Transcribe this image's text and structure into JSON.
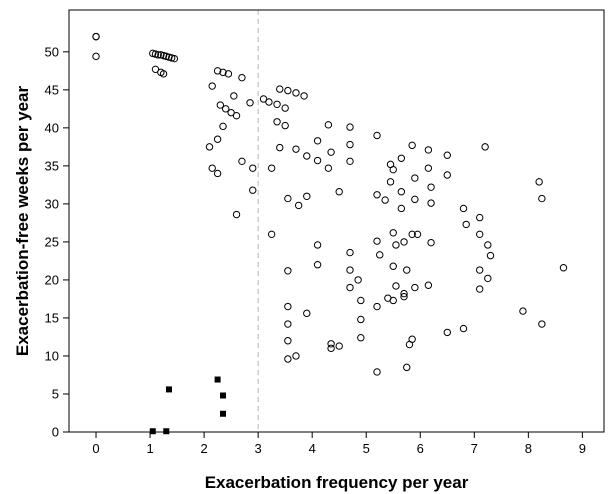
{
  "chart_data": {
    "type": "scatter",
    "title": "",
    "xlabel": "Exacerbation frequency per year",
    "ylabel": "Exacerbation-free weeks per year",
    "xlim": [
      -0.5,
      9.4
    ],
    "ylim": [
      0,
      55.5
    ],
    "xticks": [
      0,
      1,
      2,
      3,
      4,
      5,
      6,
      7,
      8,
      9
    ],
    "yticks": [
      0,
      5,
      10,
      15,
      20,
      25,
      30,
      35,
      40,
      45,
      50
    ],
    "reference_line": {
      "x": 3,
      "style": "dashed"
    },
    "grid": false,
    "legend": "none",
    "series": [
      {
        "marker": "open-circle",
        "points": [
          [
            0,
            52
          ],
          [
            0,
            52
          ],
          [
            0,
            49.4
          ],
          [
            1.05,
            49.8
          ],
          [
            1.1,
            49.7
          ],
          [
            1.15,
            49.6
          ],
          [
            1.2,
            49.6
          ],
          [
            1.25,
            49.5
          ],
          [
            1.3,
            49.4
          ],
          [
            1.35,
            49.3
          ],
          [
            1.4,
            49.2
          ],
          [
            1.45,
            49.1
          ],
          [
            1.1,
            47.7
          ],
          [
            1.2,
            47.3
          ],
          [
            1.25,
            47.1
          ],
          [
            2.25,
            47.5
          ],
          [
            2.35,
            47.3
          ],
          [
            2.45,
            47.1
          ],
          [
            2.7,
            46.6
          ],
          [
            2.15,
            45.5
          ],
          [
            2.3,
            43
          ],
          [
            2.4,
            42.5
          ],
          [
            2.5,
            42
          ],
          [
            2.6,
            41.6
          ],
          [
            2.85,
            43.3
          ],
          [
            2.55,
            44.2
          ],
          [
            2.35,
            40.2
          ],
          [
            2.25,
            38.5
          ],
          [
            2.1,
            37.5
          ],
          [
            2.15,
            34.7
          ],
          [
            2.25,
            34
          ],
          [
            2.7,
            35.6
          ],
          [
            2.9,
            34.7
          ],
          [
            2.9,
            31.8
          ],
          [
            2.6,
            28.6
          ],
          [
            3.1,
            43.8
          ],
          [
            3.2,
            43.4
          ],
          [
            3.35,
            43.1
          ],
          [
            3.5,
            42.6
          ],
          [
            3.4,
            45.1
          ],
          [
            3.55,
            44.9
          ],
          [
            3.7,
            44.6
          ],
          [
            3.85,
            44.2
          ],
          [
            3.35,
            40.8
          ],
          [
            3.5,
            40.3
          ],
          [
            3.4,
            37.4
          ],
          [
            3.7,
            37.2
          ],
          [
            3.9,
            36.3
          ],
          [
            4.1,
            35.7
          ],
          [
            4.3,
            34.7
          ],
          [
            4.1,
            38.3
          ],
          [
            4.3,
            40.4
          ],
          [
            4.35,
            36.8
          ],
          [
            4.7,
            40.1
          ],
          [
            4.7,
            37.8
          ],
          [
            4.7,
            35.6
          ],
          [
            3.25,
            34.7
          ],
          [
            3.55,
            30.7
          ],
          [
            3.75,
            29.8
          ],
          [
            3.9,
            31
          ],
          [
            4.5,
            31.6
          ],
          [
            3.25,
            26
          ],
          [
            4.1,
            24.6
          ],
          [
            4.1,
            22
          ],
          [
            4.7,
            23.6
          ],
          [
            4.7,
            21.3
          ],
          [
            4.85,
            20
          ],
          [
            4.7,
            19
          ],
          [
            3.55,
            21.2
          ],
          [
            3.55,
            16.5
          ],
          [
            3.55,
            14.2
          ],
          [
            3.55,
            12
          ],
          [
            3.55,
            9.6
          ],
          [
            3.7,
            10
          ],
          [
            3.9,
            15.6
          ],
          [
            4.35,
            11.6
          ],
          [
            4.35,
            11
          ],
          [
            4.5,
            11.3
          ],
          [
            4.9,
            14.8
          ],
          [
            4.9,
            12.4
          ],
          [
            5.2,
            7.9
          ],
          [
            4.9,
            17.3
          ],
          [
            5.2,
            31.2
          ],
          [
            5.2,
            39
          ],
          [
            5.45,
            35.2
          ],
          [
            5.5,
            34.5
          ],
          [
            5.65,
            36
          ],
          [
            5.85,
            37.7
          ],
          [
            6.15,
            37.1
          ],
          [
            6.5,
            36.4
          ],
          [
            6.5,
            33.8
          ],
          [
            7.2,
            37.5
          ],
          [
            5.35,
            30.5
          ],
          [
            5.45,
            32.9
          ],
          [
            5.65,
            31.6
          ],
          [
            5.65,
            29.4
          ],
          [
            5.9,
            30.6
          ],
          [
            5.9,
            33.4
          ],
          [
            6.15,
            34.7
          ],
          [
            6.2,
            32.2
          ],
          [
            6.2,
            30.1
          ],
          [
            5.2,
            25.1
          ],
          [
            5.25,
            23.3
          ],
          [
            5.5,
            26.2
          ],
          [
            5.55,
            24.6
          ],
          [
            5.7,
            25
          ],
          [
            5.85,
            26
          ],
          [
            5.95,
            26
          ],
          [
            6.2,
            24.9
          ],
          [
            5.5,
            21.8
          ],
          [
            5.55,
            19.2
          ],
          [
            5.4,
            17.6
          ],
          [
            5.2,
            16.5
          ],
          [
            5.5,
            17.3
          ],
          [
            5.75,
            21.3
          ],
          [
            5.7,
            18.2
          ],
          [
            5.7,
            17.8
          ],
          [
            5.9,
            19
          ],
          [
            6.15,
            19.3
          ],
          [
            5.85,
            12.2
          ],
          [
            5.8,
            11.5
          ],
          [
            5.75,
            8.5
          ],
          [
            6.5,
            13.1
          ],
          [
            6.8,
            13.6
          ],
          [
            6.8,
            29.4
          ],
          [
            6.85,
            27.3
          ],
          [
            7.1,
            28.2
          ],
          [
            7.1,
            26
          ],
          [
            7.25,
            24.6
          ],
          [
            7.3,
            23.2
          ],
          [
            7.1,
            21.3
          ],
          [
            7.25,
            20.2
          ],
          [
            7.1,
            18.8
          ],
          [
            7.9,
            15.9
          ],
          [
            8.2,
            32.9
          ],
          [
            8.25,
            30.7
          ],
          [
            8.25,
            14.2
          ],
          [
            8.65,
            21.6
          ]
        ]
      },
      {
        "marker": "filled-square",
        "points": [
          [
            1.05,
            0.1
          ],
          [
            1.3,
            0.1
          ],
          [
            1.35,
            5.6
          ],
          [
            2.25,
            6.9
          ],
          [
            2.35,
            4.8
          ],
          [
            2.35,
            2.4
          ]
        ]
      }
    ]
  }
}
